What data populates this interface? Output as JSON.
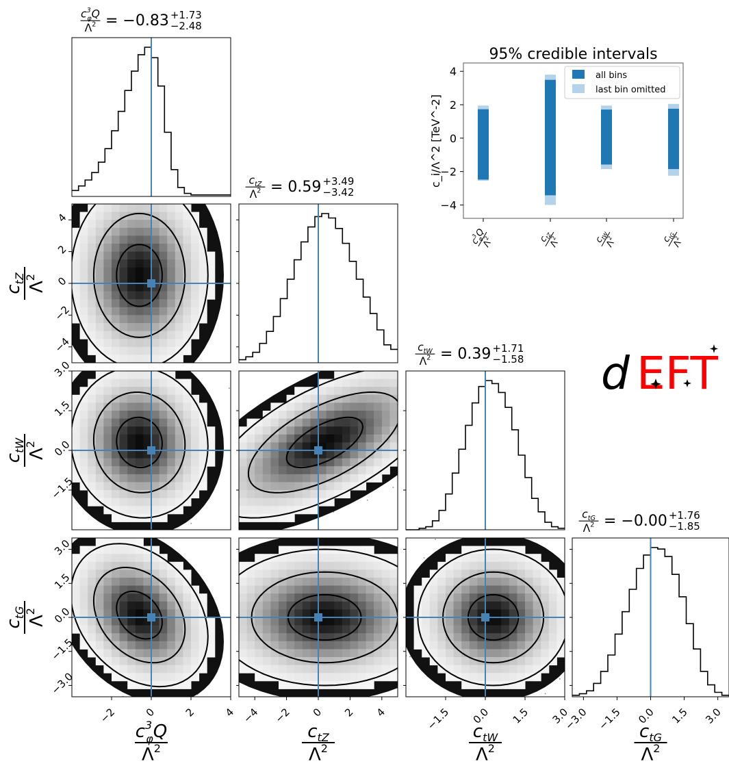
{
  "colors": {
    "accent": "#4682b4",
    "bar_dark": "#1f77b4",
    "bar_light": "#b4d2ea",
    "logo_red": "#ff0000"
  },
  "logo": {
    "d": "d",
    "eft": "EFT"
  },
  "chart_data": [
    {
      "type": "corner",
      "parameters": [
        {
          "key": "cphiQ3",
          "name": "c_φ^3Q",
          "num": "c",
          "sub": "φ",
          "sup": "3",
          "suffix": "Q",
          "den": "Λ",
          "den_sup": "2",
          "range": [
            -4,
            4
          ],
          "truth": 0,
          "ticks": [
            -2,
            0,
            2,
            4
          ],
          "tick_labels": [
            "−2",
            "0",
            "2",
            "4"
          ],
          "title": {
            "value": "−0.83",
            "plus": "+1.73",
            "minus": "−2.48"
          },
          "hist": [
            0.04,
            0.07,
            0.11,
            0.16,
            0.23,
            0.32,
            0.44,
            0.57,
            0.71,
            0.84,
            0.95,
            1.0,
            0.93,
            0.74,
            0.43,
            0.18,
            0.06,
            0.02,
            0.01,
            0.01,
            0.01,
            0.01,
            0.01,
            0.01
          ]
        },
        {
          "key": "ctZ",
          "name": "c_tZ",
          "num": "c",
          "sub": "tZ",
          "sup": "",
          "suffix": "",
          "den": "Λ",
          "den_sup": "2",
          "range": [
            -5,
            5
          ],
          "truth": 0,
          "ticks": [
            -4,
            -2,
            0,
            2,
            4
          ],
          "tick_labels": [
            "−4",
            "−2",
            "0",
            "2",
            "4"
          ],
          "title": {
            "value": "0.59",
            "plus": "+3.49",
            "minus": "−3.42"
          },
          "hist": [
            0.02,
            0.04,
            0.07,
            0.13,
            0.21,
            0.31,
            0.43,
            0.56,
            0.69,
            0.81,
            0.91,
            0.98,
            1.0,
            0.97,
            0.9,
            0.8,
            0.68,
            0.56,
            0.44,
            0.33,
            0.22,
            0.12,
            0.09
          ]
        },
        {
          "key": "ctW",
          "name": "c_tW",
          "num": "c",
          "sub": "tW",
          "sup": "",
          "suffix": "",
          "den": "Λ",
          "den_sup": "2",
          "range": [
            -3,
            3
          ],
          "truth": 0,
          "ticks": [
            -1.5,
            0,
            1.5,
            3.0
          ],
          "tick_labels": [
            "−1.5",
            "0.0",
            "1.5",
            "3.0"
          ],
          "left_ticks": [
            -1.5,
            0,
            1.5,
            3.0
          ],
          "left_tick_labels": [
            "−1.5",
            "0.0",
            "1.5",
            "3.0"
          ],
          "title": {
            "value": "0.39",
            "plus": "+1.71",
            "minus": "−1.58"
          },
          "hist": [
            0.0,
            0.0,
            0.01,
            0.02,
            0.06,
            0.13,
            0.24,
            0.38,
            0.54,
            0.7,
            0.85,
            0.96,
            1.0,
            0.98,
            0.92,
            0.82,
            0.67,
            0.5,
            0.35,
            0.21,
            0.12,
            0.05,
            0.02,
            0.01
          ]
        },
        {
          "key": "ctG",
          "name": "c_tG",
          "num": "c",
          "sub": "tG",
          "sup": "",
          "suffix": "",
          "den": "Λ",
          "den_sup": "2",
          "range": [
            -3.5,
            3.5
          ],
          "truth": 0,
          "ticks": [
            -3.0,
            -1.5,
            0,
            1.5,
            3.0
          ],
          "tick_labels": [
            "−3.0",
            "−1.5",
            "0.0",
            "1.5",
            "3.0"
          ],
          "title": {
            "value": "−0.00",
            "plus": "+1.76",
            "minus": "−1.85"
          },
          "hist": [
            0.01,
            0.02,
            0.04,
            0.09,
            0.17,
            0.28,
            0.42,
            0.57,
            0.72,
            0.86,
            0.95,
            1.0,
            0.99,
            0.94,
            0.82,
            0.67,
            0.49,
            0.32,
            0.17,
            0.08,
            0.03,
            0.01
          ]
        }
      ],
      "pairs": [
        {
          "row": 1,
          "col": 0,
          "mean": [
            -0.6,
            0.5
          ],
          "sigma": [
            1.15,
            1.95
          ],
          "rho": 0.0
        },
        {
          "row": 2,
          "col": 0,
          "mean": [
            -0.6,
            0.3
          ],
          "sigma": [
            1.15,
            0.95
          ],
          "rho": -0.05
        },
        {
          "row": 2,
          "col": 1,
          "mean": [
            0.4,
            0.3
          ],
          "sigma": [
            2.4,
            0.95
          ],
          "rho": 0.62
        },
        {
          "row": 3,
          "col": 0,
          "mean": [
            -0.6,
            0.1
          ],
          "sigma": [
            1.15,
            1.05
          ],
          "rho": -0.3
        },
        {
          "row": 3,
          "col": 1,
          "mean": [
            0.4,
            0.0
          ],
          "sigma": [
            2.3,
            1.0
          ],
          "rho": 0.0
        },
        {
          "row": 3,
          "col": 2,
          "mean": [
            0.3,
            0.0
          ],
          "sigma": [
            0.95,
            1.0
          ],
          "rho": 0.0
        }
      ],
      "levels": [
        0.393,
        0.865,
        0.989
      ]
    },
    {
      "type": "bar",
      "title": "95% credible intervals",
      "ylabel": "c_i/Λ^2 [TeV^-2]",
      "ylim": [
        -4.8,
        4.5
      ],
      "yticks": [
        -4,
        -2,
        0,
        2,
        4
      ],
      "ytick_labels": [
        "−4",
        "−2",
        "0",
        "2",
        "4"
      ],
      "categories": [
        "c_φ^3Q/Λ^2",
        "c_tZ/Λ^2",
        "c_tW/Λ^2",
        "c_tG/Λ^2"
      ],
      "series": [
        {
          "name": "all bins",
          "low": [
            -2.48,
            -3.42,
            -1.58,
            -1.85
          ],
          "high": [
            1.73,
            3.49,
            1.71,
            1.76
          ]
        },
        {
          "name": "last bin omitted",
          "low": [
            -2.55,
            -4.0,
            -1.85,
            -2.25
          ],
          "high": [
            1.95,
            3.8,
            1.95,
            2.05
          ]
        }
      ],
      "legend_position": "upper right"
    }
  ]
}
